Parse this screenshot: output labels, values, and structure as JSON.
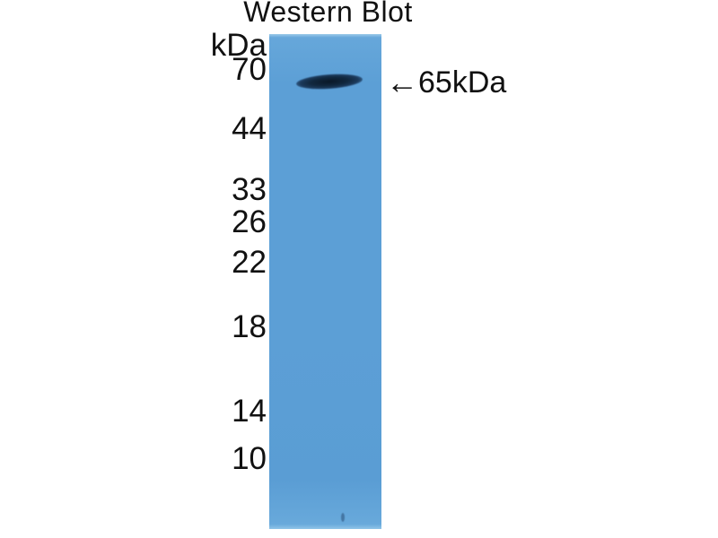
{
  "figure": {
    "title": "Western Blot",
    "type": "western-blot-lane-image"
  },
  "ladder": {
    "unit_label": "kDa",
    "labels": [
      "70",
      "44",
      "33",
      "26",
      "22",
      "18",
      "14",
      "10"
    ]
  },
  "band": {
    "arrow_glyph": "←",
    "label": "65kDa",
    "approx_molecular_weight_kda": 65
  },
  "colors": {
    "lane_blue": "#5c9fd6",
    "lane_edge_light": "#9ccae9",
    "band_dark": "#0a1828",
    "text": "#111111",
    "background": "#ffffff"
  }
}
